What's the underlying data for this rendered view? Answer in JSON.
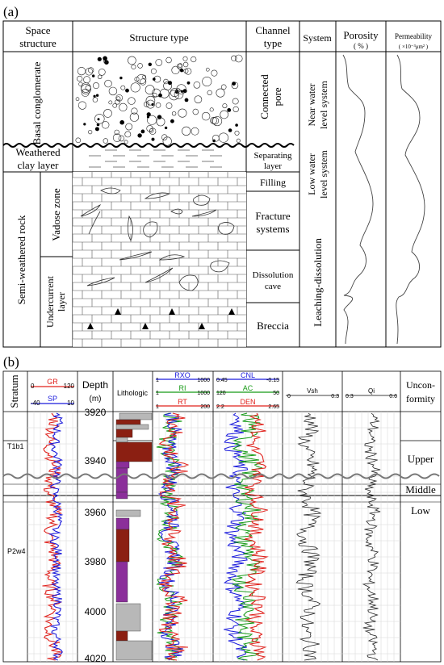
{
  "panel_a": {
    "label": "(a)",
    "headers": {
      "space_structure": [
        "Space",
        "structure"
      ],
      "structure_type": "Structure type",
      "channel_type": [
        "Channel",
        "type"
      ],
      "system": "System",
      "porosity": "Porosity",
      "porosity_unit": "( % )",
      "permeability": "Permeability",
      "permeability_unit": "( ×10⁻³μm² )"
    },
    "rows": {
      "basal_conglomerate": "Basal conglomerate",
      "weathered_clay": [
        "Weathered",
        "clay layer"
      ],
      "semi_weathered": "Semi-weathered rock",
      "vadose_zone": "Vadose zone",
      "undercurrent": [
        "Undercurrent",
        "layer"
      ]
    },
    "channels": {
      "connected_pore": [
        "Connected",
        "pore"
      ],
      "separating_layer": [
        "Separating",
        "layer"
      ],
      "filling": "Filling",
      "fracture": [
        "Fracture",
        "systems"
      ],
      "dissolution": [
        "Dissolution",
        "cave"
      ],
      "breccia": "Breccia"
    },
    "systems": {
      "near_water": [
        "Near water",
        "level system"
      ],
      "low_water": [
        "Low water",
        "level system"
      ],
      "leaching": "Leaching-dissolution"
    }
  },
  "panel_b": {
    "label": "(b)",
    "headers": {
      "stratum": "Stratum",
      "gr": "GR",
      "gr_min": "0",
      "gr_max": "120",
      "sp": "SP",
      "sp_min": "-40",
      "sp_max": "10",
      "depth": "Depth",
      "depth_unit": "(m)",
      "lithologic": "Lithologic",
      "rxo": "RXO",
      "ri": "RI",
      "rt": "RT",
      "rxo_min": "1",
      "rxo_max": "1000",
      "ri_min": "1",
      "ri_max": "1000",
      "rt_min": "1",
      "rt_max": "200",
      "cnl": "CNL",
      "cnl_min": "0.45",
      "cnl_max": "-0.15",
      "ac": "AC",
      "ac_min": "120",
      "ac_max": "50",
      "den": "DEN",
      "den_min": "2.2",
      "den_max": "2.65",
      "vsh": "Vsh",
      "vsh_min": "0",
      "vsh_max": "0.3",
      "qi": "Qi",
      "qi_min": "0.3",
      "qi_max": "0.6",
      "unconformity": [
        "Uncon-",
        "formity"
      ]
    },
    "depth_ticks": [
      "3920",
      "3940",
      "3960",
      "3980",
      "4000",
      "4020"
    ],
    "strata": [
      "T1b1",
      "P2w4"
    ],
    "zones": [
      "Upper",
      "Middle",
      "Low"
    ]
  },
  "colors": {
    "gr": "#e0201b",
    "sp": "#1a1adc",
    "ri": "#169a16",
    "lith_red": "#8b1f12",
    "lith_purple": "#8b2f9a",
    "lith_gray": "#b8b8b8"
  }
}
